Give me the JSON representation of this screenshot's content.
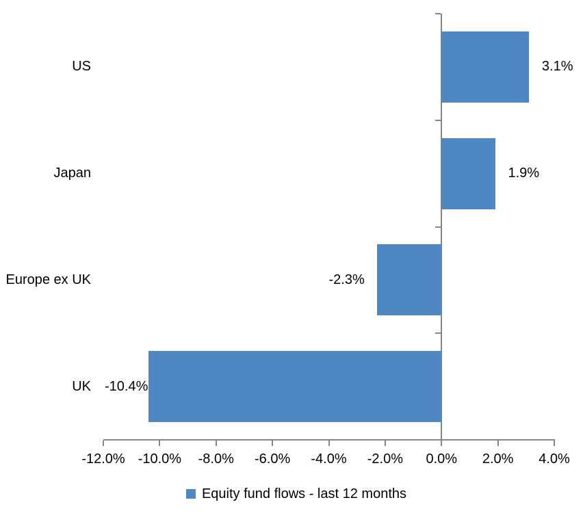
{
  "chart_data": {
    "type": "bar",
    "orientation": "horizontal",
    "title": "",
    "categories": [
      "US",
      "Japan",
      "Europe ex UK",
      "UK"
    ],
    "values": [
      3.1,
      1.9,
      -2.3,
      -10.4
    ],
    "data_labels": [
      "3.1%",
      "1.9%",
      "-2.3%",
      "-10.4%"
    ],
    "series_name": "Equity fund flows - last 12 months",
    "x_tick_values": [
      -12,
      -10,
      -8,
      -6,
      -4,
      -2,
      0,
      2,
      4
    ],
    "x_tick_labels": [
      "-12.0%",
      "-10.0%",
      "-8.0%",
      "-6.0%",
      "-4.0%",
      "-2.0%",
      "0.0%",
      "2.0%",
      "4.0%"
    ],
    "xlim": [
      -12,
      4
    ],
    "grid": false,
    "legend_position": "bottom",
    "colors": {
      "bar": "#4E87C1",
      "axis": "#868686",
      "text": "#000000",
      "background": "#FFFFFF"
    }
  }
}
